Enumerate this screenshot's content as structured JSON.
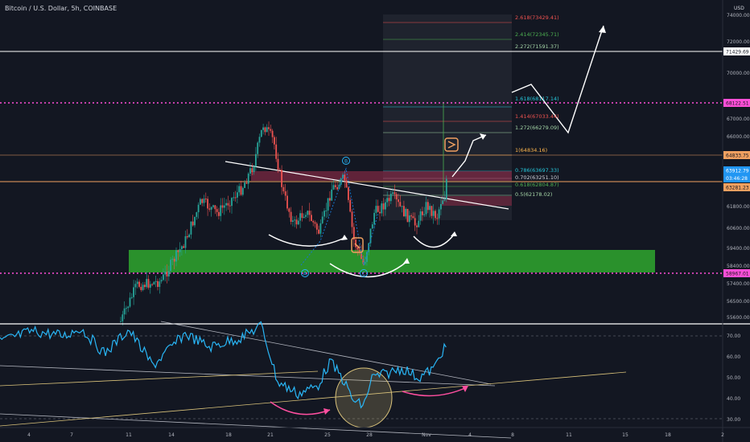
{
  "header": {
    "title": "Bitcoin / U.S. Dollar, 5h, COINBASE",
    "currency": "USD"
  },
  "price_axis": {
    "ticks": [
      "74000.00",
      "72000.00",
      "70000.00",
      "67000.00",
      "66000.00",
      "61800.00",
      "60600.00",
      "59400.00",
      "58400.00",
      "57400.00",
      "56500.00",
      "55600.00"
    ]
  },
  "price_badges": [
    {
      "label": "71429.69",
      "color": "#ffffff",
      "text": "#131722"
    },
    {
      "label": "68122.51",
      "color": "#ff4fd8",
      "text": "#131722"
    },
    {
      "label": "64833.75",
      "color": "#f0a060",
      "text": "#131722"
    },
    {
      "label": "63912.79",
      "color": "#2196f3",
      "text": "#ffffff"
    },
    {
      "label": "03:46:28",
      "color": "#2196f3",
      "text": "#ffffff"
    },
    {
      "label": "63281.23",
      "color": "#f0a060",
      "text": "#131722"
    },
    {
      "label": "58967.01",
      "color": "#ff4fd8",
      "text": "#131722"
    }
  ],
  "fib_levels": [
    {
      "label": "2.618(73429.41)",
      "color": "#ef5350"
    },
    {
      "label": "2.414(72345.71)",
      "color": "#4caf50"
    },
    {
      "label": "2.272(71591.37)",
      "color": "#a5d6a7"
    },
    {
      "label": "1.618(68117.14)",
      "color": "#26c6da"
    },
    {
      "label": "1.414(67033.44)",
      "color": "#ef5350"
    },
    {
      "label": "1.272(66279.09)",
      "color": "#a5d6a7"
    },
    {
      "label": "1(64834.16)",
      "color": "#ffb74d"
    },
    {
      "label": "0.786(63697.33)",
      "color": "#26c6da"
    },
    {
      "label": "0.702(63251.10)",
      "color": "#d1d4dc"
    },
    {
      "label": "0.618(62804.87)",
      "color": "#4caf50"
    },
    {
      "label": "0.5(62178.02)",
      "color": "#a5d6a7"
    }
  ],
  "pattern_markers": [
    "B",
    "A",
    "C"
  ],
  "rsi_axis": {
    "ticks": [
      "70.00",
      "60.00",
      "50.00",
      "40.00",
      "30.00"
    ]
  },
  "time_axis": {
    "ticks": [
      "4",
      "7",
      "11",
      "14",
      "18",
      "21",
      "25",
      "28",
      "Nov",
      "4",
      "8",
      "11",
      "15",
      "18",
      "2"
    ]
  },
  "colors": {
    "background": "#131722",
    "up": "#26a69a",
    "down": "#ef5350",
    "rsi_line": "#29b6f6",
    "support_zone": "#2e9e2e",
    "resistance_zone": "#8b2a46",
    "annotation": "#ffffff",
    "rsi_arrow": "#ff4fa0",
    "circle": "#d9c27a"
  }
}
